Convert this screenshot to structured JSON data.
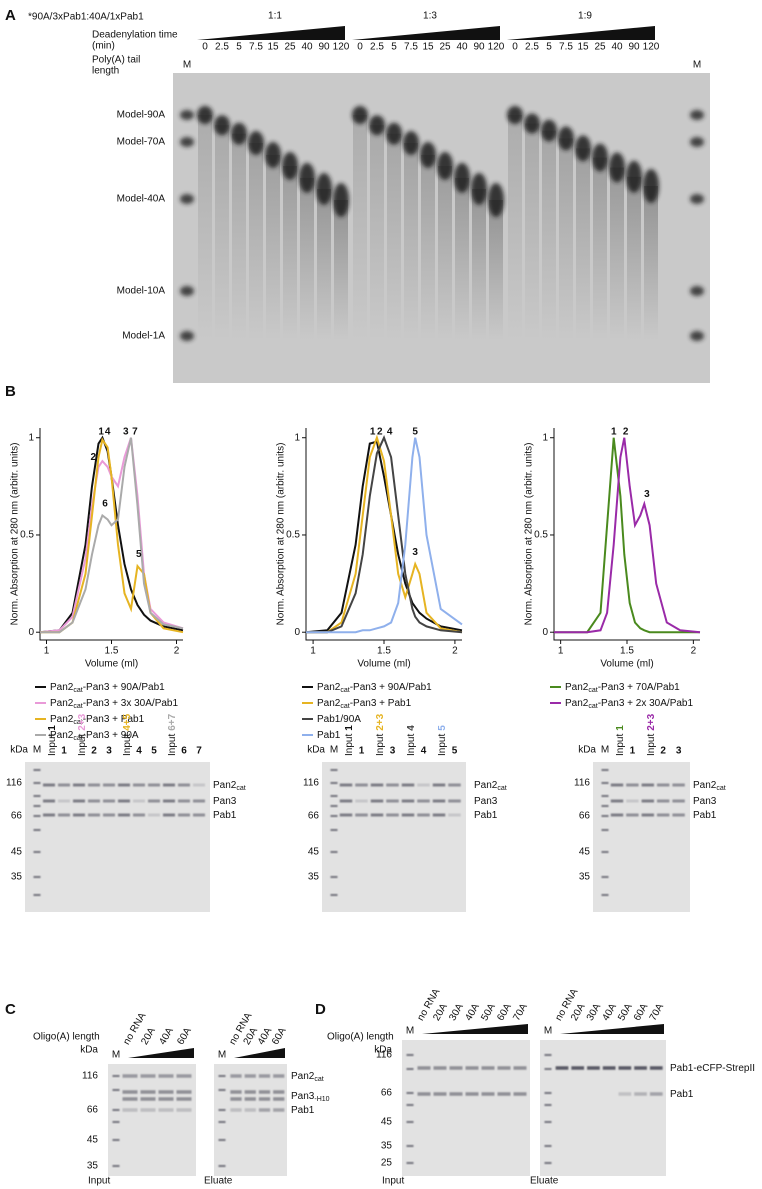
{
  "panel_a": {
    "label": "A",
    "construct": "*90A/3xPab1:40A/1xPab1",
    "time_title": "Deadenylation time",
    "time_unit": "(min)",
    "length_title": "Poly(A) tail",
    "length_unit": "length",
    "markers": [
      "M",
      "M"
    ],
    "groups": [
      {
        "ratio": "1:1",
        "times": [
          0,
          2.5,
          5,
          7.5,
          15,
          25,
          40,
          90,
          120
        ]
      },
      {
        "ratio": "1:3",
        "times": [
          0,
          2.5,
          5,
          7.5,
          15,
          25,
          40,
          90,
          120
        ]
      },
      {
        "ratio": "1:9",
        "times": [
          0,
          2.5,
          5,
          7.5,
          15,
          25,
          40,
          90,
          120
        ]
      }
    ],
    "bands": [
      "Model-90A",
      "Model-70A",
      "Model-40A",
      "Model-10A",
      "Model-1A"
    ]
  },
  "panel_b": {
    "label": "B"
  },
  "chart_data": [
    {
      "type": "line",
      "xlabel": "Volume (ml)",
      "ylabel": "Norm. Absorption at 280 nm (arbitr. units)",
      "xlim": [
        0.95,
        2.05
      ],
      "ylim": [
        -0.04,
        1.05
      ],
      "xticks": [
        1,
        1.5,
        2
      ],
      "yticks": [
        0,
        0.5,
        1
      ],
      "x": [
        0.95,
        1.1,
        1.2,
        1.3,
        1.35,
        1.4,
        1.43,
        1.47,
        1.5,
        1.55,
        1.6,
        1.65,
        1.7,
        1.75,
        1.8,
        1.9,
        2.05
      ],
      "series": [
        {
          "name": [
            "Pan2",
            "cat",
            "-Pan3 + 90A/Pab1"
          ],
          "color": "#111111",
          "values": [
            0,
            0.01,
            0.1,
            0.45,
            0.75,
            0.97,
            1,
            0.93,
            0.8,
            0.55,
            0.35,
            0.22,
            0.14,
            0.09,
            0.06,
            0.03,
            0.01
          ]
        },
        {
          "name": [
            "Pan2",
            "cat",
            "-Pan3 + 3x 30A/Pab1"
          ],
          "color": "#e99ad8",
          "values": [
            0,
            0.01,
            0.08,
            0.38,
            0.65,
            0.85,
            0.88,
            0.85,
            0.8,
            0.75,
            0.9,
            1,
            0.7,
            0.3,
            0.12,
            0.05,
            0.02
          ]
        },
        {
          "name": [
            "Pan2",
            "cat",
            "-Pan3 + Pab1"
          ],
          "color": "#e6b422",
          "values": [
            0,
            0,
            0.05,
            0.3,
            0.6,
            0.9,
            0.99,
            0.95,
            0.8,
            0.45,
            0.2,
            0.12,
            0.34,
            0.3,
            0.1,
            0.02,
            0
          ]
        },
        {
          "name": [
            "Pan2",
            "cat",
            "-Pan3 + 90A"
          ],
          "color": "#aaaaaa",
          "values": [
            0,
            0,
            0.05,
            0.22,
            0.4,
            0.55,
            0.6,
            0.58,
            0.55,
            0.58,
            0.85,
            1,
            0.65,
            0.25,
            0.1,
            0.04,
            0.02
          ]
        }
      ],
      "annotations": [
        {
          "text": "1",
          "color": "#111111",
          "x": 1.42,
          "y": 1.03
        },
        {
          "text": "4",
          "color": "#e6b422",
          "x": 1.47,
          "y": 1.03
        },
        {
          "text": "2",
          "color": "#e99ad8",
          "x": 1.36,
          "y": 0.9
        },
        {
          "text": "3",
          "color": "#e99ad8",
          "x": 1.61,
          "y": 1.03
        },
        {
          "text": "7",
          "color": "#aaaaaa",
          "x": 1.68,
          "y": 1.03
        },
        {
          "text": "6",
          "color": "#aaaaaa",
          "x": 1.45,
          "y": 0.66
        },
        {
          "text": "5",
          "color": "#e6b422",
          "x": 1.71,
          "y": 0.4
        }
      ]
    },
    {
      "type": "line",
      "xlabel": "Volume (ml)",
      "ylabel": "Norm. Absorption at 280 nm (arbitr. units)",
      "xlim": [
        0.95,
        2.05
      ],
      "ylim": [
        -0.04,
        1.05
      ],
      "xticks": [
        1,
        1.5,
        2
      ],
      "yticks": [
        0,
        0.5,
        1
      ],
      "x": [
        0.95,
        1.1,
        1.2,
        1.3,
        1.35,
        1.4,
        1.45,
        1.5,
        1.55,
        1.6,
        1.65,
        1.7,
        1.72,
        1.75,
        1.8,
        1.9,
        2.05
      ],
      "series": [
        {
          "name": [
            "Pan2",
            "cat",
            "-Pan3 +  90A/Pab1"
          ],
          "color": "#111111",
          "values": [
            0,
            0.01,
            0.1,
            0.45,
            0.75,
            0.97,
            0.98,
            0.8,
            0.6,
            0.4,
            0.25,
            0.15,
            0.13,
            0.1,
            0.07,
            0.03,
            0.01
          ]
        },
        {
          "name": [
            "Pan2",
            "cat",
            "-Pan3 + Pab1"
          ],
          "color": "#e6b422",
          "values": [
            0,
            0,
            0.05,
            0.3,
            0.6,
            0.9,
            1,
            0.88,
            0.6,
            0.3,
            0.18,
            0.3,
            0.35,
            0.3,
            0.1,
            0.02,
            0
          ]
        },
        {
          "name": [
            "Pab1/90A"
          ],
          "color": "#444444",
          "values": [
            0,
            0,
            0.03,
            0.2,
            0.4,
            0.7,
            0.92,
            1,
            0.9,
            0.6,
            0.3,
            0.12,
            0.08,
            0.05,
            0.03,
            0.01,
            0
          ]
        },
        {
          "name": [
            "Pab1"
          ],
          "color": "#8fb0ec",
          "values": [
            0,
            0,
            0,
            0,
            0.01,
            0.01,
            0.02,
            0.03,
            0.05,
            0.15,
            0.45,
            0.9,
            1,
            0.9,
            0.5,
            0.12,
            0.04
          ]
        }
      ],
      "annotations": [
        {
          "text": "1",
          "color": "#111111",
          "x": 1.42,
          "y": 1.03
        },
        {
          "text": "2",
          "color": "#e6b422",
          "x": 1.47,
          "y": 1.03
        },
        {
          "text": "4",
          "color": "#444444",
          "x": 1.54,
          "y": 1.03
        },
        {
          "text": "5",
          "color": "#8fb0ec",
          "x": 1.72,
          "y": 1.03
        },
        {
          "text": "3",
          "color": "#e6b422",
          "x": 1.72,
          "y": 0.41
        }
      ]
    },
    {
      "type": "line",
      "xlabel": "Volume (ml)",
      "ylabel": "Norm. Absorption at 280 nm (arbitr. units)",
      "xlim": [
        0.95,
        2.05
      ],
      "ylim": [
        -0.04,
        1.05
      ],
      "xticks": [
        1,
        1.5,
        2
      ],
      "yticks": [
        0,
        0.5,
        1
      ],
      "x": [
        0.95,
        1.2,
        1.3,
        1.35,
        1.4,
        1.45,
        1.48,
        1.52,
        1.56,
        1.6,
        1.63,
        1.67,
        1.72,
        1.8,
        1.9,
        2.05
      ],
      "series": [
        {
          "name": [
            "Pan2",
            "cat",
            "-Pan3 + 70A/Pab1"
          ],
          "color": "#4a8a1e",
          "values": [
            0,
            0,
            0.1,
            0.55,
            1,
            0.7,
            0.4,
            0.15,
            0.05,
            0.02,
            0.01,
            0,
            0,
            0,
            0,
            0
          ]
        },
        {
          "name": [
            "Pan2",
            "cat",
            "-Pan3 + 2x 30A/Pab1"
          ],
          "color": "#9a2aa8",
          "values": [
            0,
            0,
            0.01,
            0.1,
            0.45,
            0.9,
            1,
            0.75,
            0.55,
            0.6,
            0.66,
            0.55,
            0.25,
            0.05,
            0.01,
            0
          ]
        }
      ],
      "annotations": [
        {
          "text": "1",
          "color": "#4a8a1e",
          "x": 1.4,
          "y": 1.03
        },
        {
          "text": "2",
          "color": "#9a2aa8",
          "x": 1.49,
          "y": 1.03
        },
        {
          "text": "3",
          "color": "#9a2aa8",
          "x": 1.65,
          "y": 0.71
        }
      ]
    }
  ],
  "gels_b": [
    {
      "unit": "kDa",
      "marker": "M",
      "sizes": [
        116,
        66,
        45,
        35
      ],
      "proteins": [
        [
          "Pan2",
          "cat"
        ],
        [
          "Pan3"
        ],
        [
          "Pab1"
        ]
      ],
      "lanes": [
        {
          "label": "Input",
          "num": "1",
          "color": "#111111"
        },
        {
          "num": "1",
          "color": "#111111"
        },
        {
          "label": "Input",
          "num": "2+3",
          "color": "#e99ad8"
        },
        {
          "num": "2",
          "color": "#e99ad8"
        },
        {
          "num": "3",
          "color": "#e99ad8"
        },
        {
          "label": "Input",
          "num": "4+5",
          "color": "#e6b422"
        },
        {
          "num": "4",
          "color": "#e6b422"
        },
        {
          "num": "5",
          "color": "#e6b422"
        },
        {
          "label": "Input",
          "num": "6+7",
          "color": "#aaaaaa"
        },
        {
          "num": "6",
          "color": "#aaaaaa"
        },
        {
          "num": "7",
          "color": "#aaaaaa"
        }
      ]
    },
    {
      "unit": "kDa",
      "marker": "M",
      "sizes": [
        116,
        66,
        45,
        35
      ],
      "proteins": [
        [
          "Pan2",
          "cat"
        ],
        [
          "Pan3"
        ],
        [
          "Pab1"
        ]
      ],
      "lanes": [
        {
          "label": "Input",
          "num": "1",
          "color": "#111111"
        },
        {
          "num": "1",
          "color": "#111111"
        },
        {
          "label": "Input",
          "num": "2+3",
          "color": "#e6b422"
        },
        {
          "num": "3",
          "color": "#e6b422"
        },
        {
          "label": "Input",
          "num": "4",
          "color": "#444444"
        },
        {
          "num": "4",
          "color": "#444444"
        },
        {
          "label": "Input",
          "num": "5",
          "color": "#8fb0ec"
        },
        {
          "num": "5",
          "color": "#8fb0ec"
        }
      ]
    },
    {
      "unit": "kDa",
      "marker": "M",
      "sizes": [
        116,
        66,
        45,
        35
      ],
      "proteins": [
        [
          "Pan2",
          "cat"
        ],
        [
          "Pan3"
        ],
        [
          "Pab1"
        ]
      ],
      "lanes": [
        {
          "label": "Input",
          "num": "1",
          "color": "#4a8a1e"
        },
        {
          "num": "1",
          "color": "#4a8a1e"
        },
        {
          "label": "Input",
          "num": "2+3",
          "color": "#9a2aa8"
        },
        {
          "num": "2",
          "color": "#9a2aa8"
        },
        {
          "num": "3",
          "color": "#9a2aa8"
        }
      ]
    }
  ],
  "panel_c": {
    "label": "C",
    "length_title": "Oligo(A) length",
    "unit": "kDa",
    "sizes": [
      116,
      66,
      45,
      35
    ],
    "proteins": [
      [
        "Pan2",
        "cat"
      ],
      [
        "Pan3",
        "-H10"
      ],
      [
        "Pab1"
      ]
    ],
    "gels": [
      {
        "caption": "Input",
        "marker": "M",
        "lanes": [
          "no RNA",
          "20A",
          "40A",
          "60A"
        ]
      },
      {
        "caption": "Eluate",
        "marker": "M",
        "lanes": [
          "no RNA",
          "20A",
          "40A",
          "60A"
        ]
      }
    ]
  },
  "panel_d": {
    "label": "D",
    "length_title": "Oligo(A) length",
    "unit": "kDa",
    "sizes": [
      116,
      66,
      45,
      35,
      25
    ],
    "proteins": [
      [
        "Pab1-eCFP-StrepII"
      ],
      [
        "Pab1"
      ]
    ],
    "gels": [
      {
        "caption": "Input",
        "marker": "M",
        "lanes": [
          "no RNA",
          "20A",
          "30A",
          "40A",
          "50A",
          "60A",
          "70A"
        ]
      },
      {
        "caption": "Eluate",
        "marker": "M",
        "lanes": [
          "no RNA",
          "20A",
          "30A",
          "40A",
          "50A",
          "60A",
          "70A"
        ]
      }
    ]
  }
}
